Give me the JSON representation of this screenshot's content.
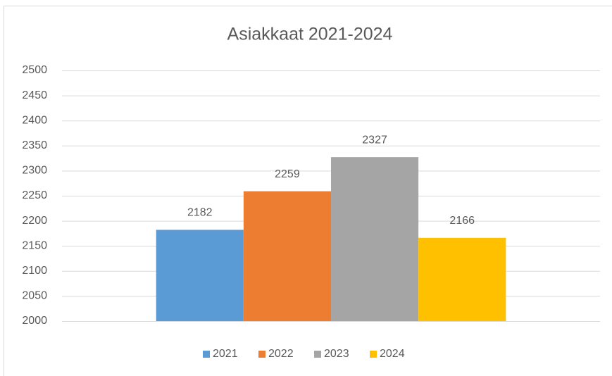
{
  "chart_data": {
    "type": "bar",
    "title": "Asiakkaat 2021-2024",
    "categories": [
      null
    ],
    "series": [
      {
        "name": "2021",
        "color": "#5b9bd5",
        "values": [
          2182
        ]
      },
      {
        "name": "2022",
        "color": "#ed7d31",
        "values": [
          2259
        ]
      },
      {
        "name": "2023",
        "color": "#a5a5a5",
        "values": [
          2327
        ]
      },
      {
        "name": "2024",
        "color": "#ffc000",
        "values": [
          2166
        ]
      }
    ],
    "ylim": [
      2000,
      2500
    ],
    "yticks": [
      2000,
      2050,
      2100,
      2150,
      2200,
      2250,
      2300,
      2350,
      2400,
      2450,
      2500
    ],
    "grid": true,
    "legend": "bottom",
    "data_labels": true
  }
}
